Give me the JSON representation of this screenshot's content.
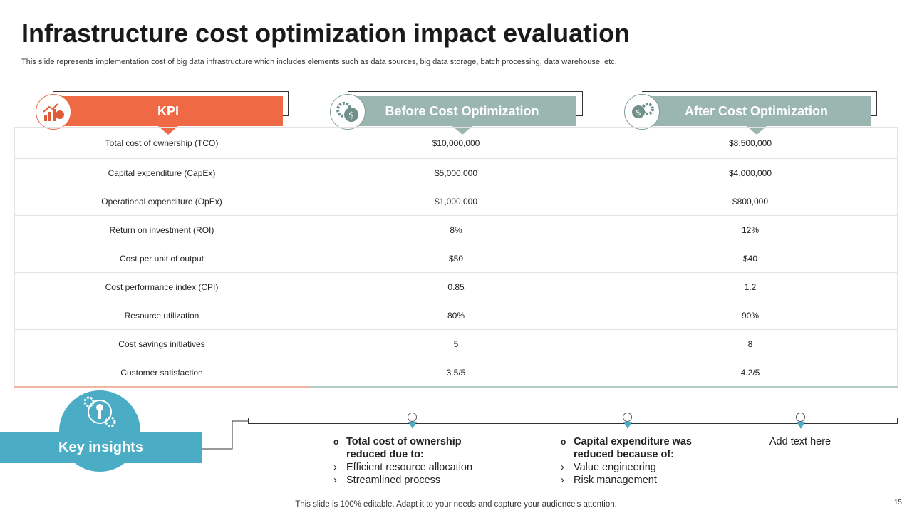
{
  "title": "Infrastructure cost optimization impact evaluation",
  "subtitle": "This slide represents implementation cost of big data infrastructure which includes elements such as data sources, big data storage, batch processing, data warehouse, etc.",
  "colors": {
    "kpi": "#ef6944",
    "before": "#9bb6b0",
    "after": "#9bb6b0",
    "insights": "#4bacc6"
  },
  "headers": [
    {
      "label": "KPI",
      "icon": "growth-chart-kpi-icon"
    },
    {
      "label": "Before Cost Optimization",
      "icon": "gear-dollar-icon"
    },
    {
      "label": "After Cost Optimization",
      "icon": "gear-dollar-icon"
    }
  ],
  "rows": [
    [
      "Total cost of ownership (TCO)",
      "$10,000,000",
      "$8,500,000"
    ],
    [
      "Capital expenditure (CapEx)",
      "$5,000,000",
      "$4,000,000"
    ],
    [
      "Operational expenditure (OpEx)",
      "$1,000,000",
      "$800,000"
    ],
    [
      "Return on investment (ROI)",
      "8%",
      "12%"
    ],
    [
      "Cost per unit of output",
      "$50",
      "$40"
    ],
    [
      "Cost performance  index (CPI)",
      "0.85",
      "1.2"
    ],
    [
      "Resource utilization",
      "80%",
      "90%"
    ],
    [
      "Cost savings initiatives",
      "5",
      "8"
    ],
    [
      "Customer satisfaction",
      "3.5/5",
      "4.2/5"
    ]
  ],
  "insights": {
    "label": "Key insights",
    "icon": "key-gears-icon",
    "items": [
      {
        "heading": "Total cost of ownership reduced due to:",
        "bullets": [
          "Efficient resource allocation",
          "Streamlined process"
        ]
      },
      {
        "heading": "Capital expenditure was reduced because of:",
        "bullets": [
          "Value engineering",
          "Risk management"
        ]
      },
      {
        "text": "Add text here"
      }
    ]
  },
  "footer": "This slide is 100% editable. Adapt it to your needs and capture your audience's attention.",
  "page_number": "15"
}
